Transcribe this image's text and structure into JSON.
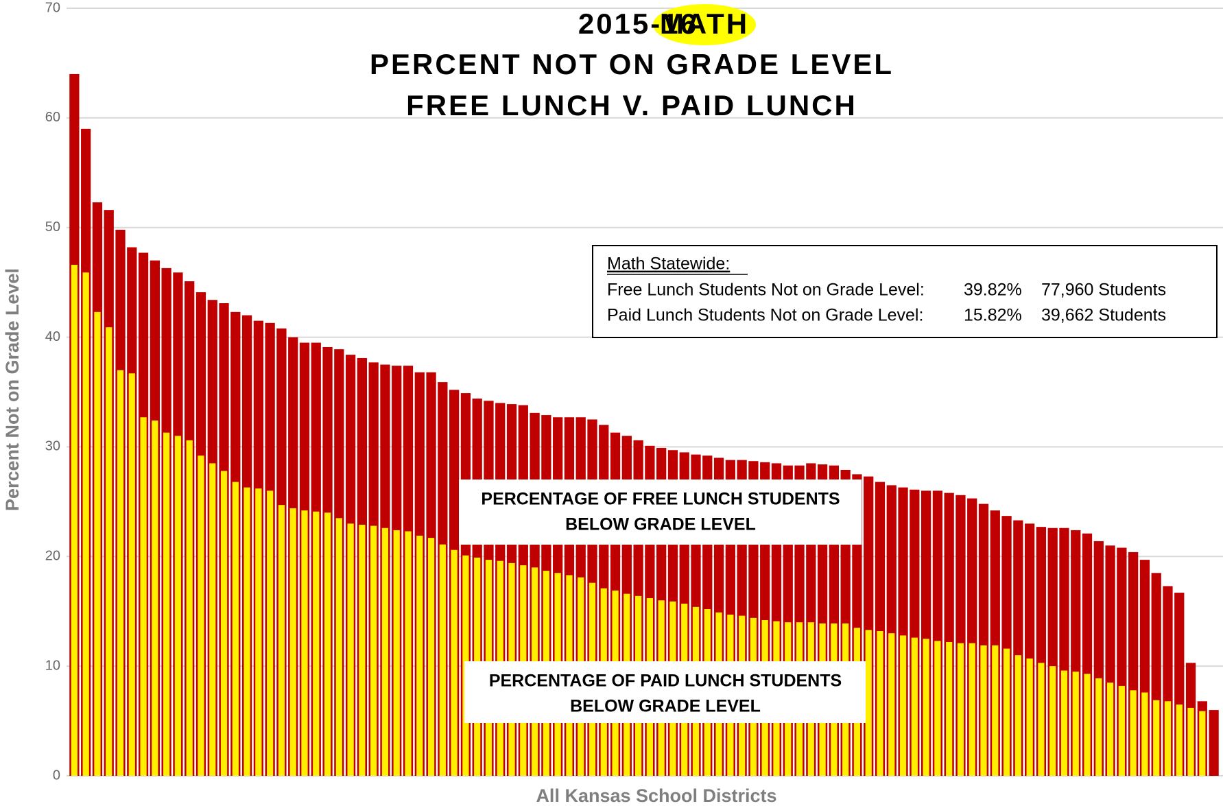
{
  "chart_data": {
    "type": "bar",
    "title_parts": [
      "2015-16",
      "MATH"
    ],
    "title_highlight_color": "#ffff00",
    "subtitle": [
      "PERCENT NOT ON GRADE LEVEL",
      "FREE LUNCH V. PAID LUNCH"
    ],
    "ylabel": "Percent Not on Grade Level",
    "xlabel": "All Kansas School Districts",
    "ylim": [
      0,
      70
    ],
    "yticks": [
      0,
      10,
      20,
      30,
      40,
      50,
      60,
      70
    ],
    "grid": true,
    "overlap": true,
    "series": [
      {
        "color": "#c00000",
        "values": [
          64.0,
          59.0,
          52.3,
          51.6,
          49.8,
          48.2,
          47.7,
          47.0,
          46.3,
          45.9,
          45.1,
          44.1,
          43.4,
          43.1,
          42.3,
          42.0,
          41.5,
          41.3,
          40.8,
          40.0,
          39.5,
          39.5,
          39.1,
          38.9,
          38.4,
          38.1,
          37.7,
          37.5,
          37.4,
          37.4,
          36.8,
          36.8,
          35.9,
          35.2,
          34.9,
          34.4,
          34.2,
          34.0,
          33.9,
          33.8,
          33.1,
          32.9,
          32.7,
          32.7,
          32.7,
          32.5,
          32.0,
          31.3,
          31.0,
          30.6,
          30.1,
          29.9,
          29.7,
          29.5,
          29.3,
          29.2,
          29.0,
          28.8,
          28.8,
          28.7,
          28.6,
          28.5,
          28.3,
          28.3,
          28.5,
          28.4,
          28.3,
          27.9,
          27.5,
          27.3,
          26.8,
          26.5,
          26.3,
          26.1,
          26.0,
          26.0,
          25.8,
          25.6,
          25.3,
          24.8,
          24.2,
          23.7,
          23.3,
          23.0,
          22.7,
          22.6,
          22.6,
          22.4,
          22.1,
          21.4,
          21.0,
          20.8,
          20.4,
          19.7,
          18.5,
          17.3,
          16.7,
          10.3,
          6.8,
          6.0
        ]
      },
      {
        "color": "#ffee00",
        "values": [
          46.6,
          45.9,
          42.3,
          40.9,
          37.0,
          36.7,
          32.7,
          32.4,
          31.3,
          31.0,
          30.6,
          29.2,
          28.5,
          27.8,
          26.8,
          26.3,
          26.2,
          26.0,
          24.7,
          24.4,
          24.2,
          24.1,
          24.0,
          23.5,
          23.0,
          22.9,
          22.8,
          22.6,
          22.4,
          22.3,
          21.9,
          21.7,
          21.1,
          20.6,
          20.1,
          19.9,
          19.7,
          19.6,
          19.4,
          19.2,
          19.0,
          18.7,
          18.5,
          18.3,
          18.1,
          17.6,
          17.1,
          16.9,
          16.6,
          16.4,
          16.2,
          16.0,
          15.9,
          15.7,
          15.4,
          15.2,
          14.9,
          14.7,
          14.6,
          14.4,
          14.2,
          14.1,
          14.0,
          14.0,
          14.0,
          13.9,
          13.9,
          13.9,
          13.5,
          13.3,
          13.2,
          13.0,
          12.8,
          12.6,
          12.5,
          12.3,
          12.2,
          12.1,
          12.1,
          11.9,
          11.9,
          11.6,
          11.0,
          10.7,
          10.3,
          10.0,
          9.6,
          9.5,
          9.3,
          8.9,
          8.5,
          8.2,
          7.8,
          7.6,
          6.9,
          6.8,
          6.5,
          6.2,
          5.9,
          0
        ]
      }
    ],
    "statewide_box": {
      "heading": "Math Statewide:",
      "rows": [
        {
          "label": "Free Lunch Students Not on Grade Level:",
          "percent": "39.82%",
          "students": "77,960 Students"
        },
        {
          "label": "Paid Lunch Students Not on Grade Level:",
          "percent": "15.82%",
          "students": "39,662 Students"
        }
      ]
    },
    "annotations": [
      {
        "lines": [
          "PERCENTAGE OF FREE LUNCH STUDENTS",
          "BELOW GRADE LEVEL"
        ]
      },
      {
        "lines": [
          "PERCENTAGE OF PAID LUNCH STUDENTS",
          "BELOW GRADE LEVEL"
        ]
      }
    ]
  }
}
